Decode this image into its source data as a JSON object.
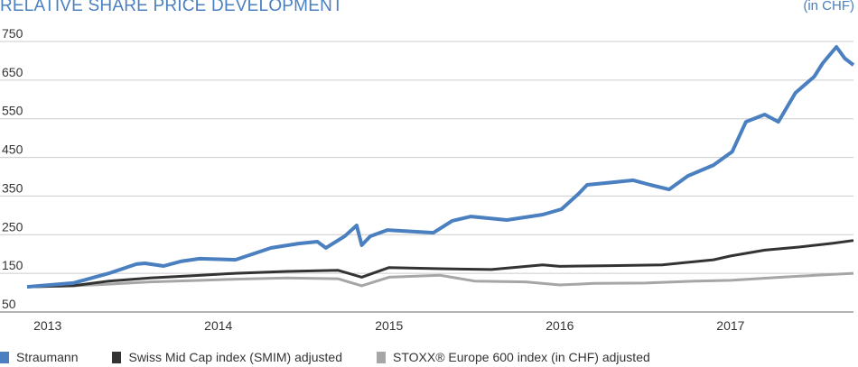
{
  "chart_data": {
    "type": "line",
    "title": "RELATIVE SHARE PRICE DEVELOPMENT",
    "unit": "(in CHF)",
    "xlabel": "",
    "ylabel": "",
    "ylim": [
      50,
      750
    ],
    "yticks": [
      750,
      650,
      550,
      450,
      350,
      250,
      150,
      50
    ],
    "xlim": [
      2012.88,
      2017.72
    ],
    "xticks": [
      {
        "value": 2013,
        "label": "2013"
      },
      {
        "value": 2014,
        "label": "2014"
      },
      {
        "value": 2015,
        "label": "2015"
      },
      {
        "value": 2016,
        "label": "2016"
      },
      {
        "value": 2017,
        "label": "2017"
      }
    ],
    "grid": "horizontal",
    "legend_position": "bottom",
    "series": [
      {
        "name": "Straumann",
        "color": "#4a7fc0",
        "x": [
          2012.88,
          2013.15,
          2013.36,
          2013.52,
          2013.57,
          2013.68,
          2013.78,
          2013.89,
          2014.1,
          2014.31,
          2014.47,
          2014.58,
          2014.63,
          2014.74,
          2014.81,
          2014.84,
          2014.89,
          2014.99,
          2015.26,
          2015.37,
          2015.48,
          2015.69,
          2015.9,
          2016.01,
          2016.11,
          2016.16,
          2016.32,
          2016.43,
          2016.53,
          2016.64,
          2016.75,
          2016.9,
          2017.01,
          2017.09,
          2017.2,
          2017.28,
          2017.38,
          2017.49,
          2017.54,
          2017.62,
          2017.67,
          2017.72
        ],
        "values": [
          115,
          125,
          150,
          174,
          176,
          169,
          181,
          188,
          185,
          216,
          227,
          232,
          216,
          246,
          274,
          223,
          246,
          262,
          255,
          286,
          297,
          288,
          302,
          316,
          356,
          379,
          386,
          391,
          379,
          367,
          402,
          430,
          465,
          542,
          561,
          542,
          617,
          659,
          694,
          736,
          706,
          689
        ]
      },
      {
        "name": "Swiss Mid Cap index (SMIM) adjusted",
        "color": "#333333",
        "x": [
          2012.88,
          2013.15,
          2013.36,
          2013.6,
          2013.9,
          2014.1,
          2014.4,
          2014.7,
          2014.84,
          2015.0,
          2015.3,
          2015.6,
          2015.9,
          2016.0,
          2016.3,
          2016.6,
          2016.9,
          2017.0,
          2017.2,
          2017.4,
          2017.6,
          2017.72
        ],
        "values": [
          115,
          118,
          130,
          138,
          145,
          150,
          155,
          158,
          140,
          165,
          162,
          160,
          172,
          168,
          170,
          172,
          185,
          195,
          210,
          218,
          228,
          235
        ]
      },
      {
        "name": "STOXX® Europe 600 index (in CHF) adjusted",
        "color": "#a6a6a6",
        "x": [
          2012.88,
          2013.15,
          2013.36,
          2013.6,
          2013.9,
          2014.1,
          2014.4,
          2014.7,
          2014.84,
          2015.0,
          2015.3,
          2015.5,
          2015.8,
          2016.0,
          2016.2,
          2016.5,
          2016.8,
          2017.0,
          2017.3,
          2017.5,
          2017.72
        ],
        "values": [
          115,
          118,
          122,
          128,
          132,
          135,
          138,
          136,
          118,
          140,
          145,
          130,
          128,
          120,
          124,
          125,
          130,
          132,
          140,
          145,
          150
        ]
      }
    ]
  }
}
